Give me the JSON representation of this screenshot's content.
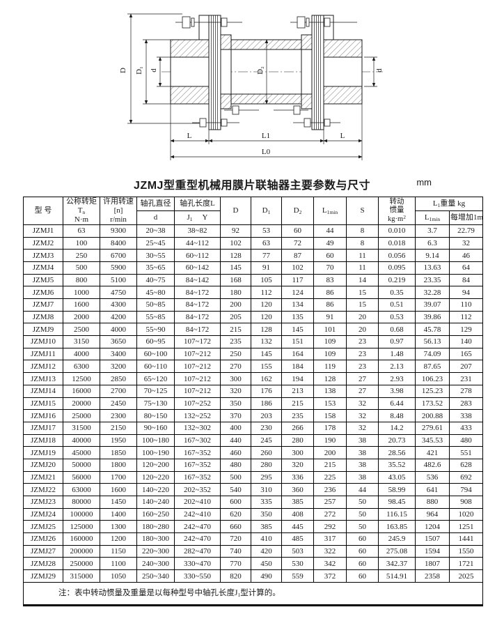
{
  "page": {
    "title": "JZMJ型重型机械用膜片联轴器主要参数与尺寸",
    "unit": "mm"
  },
  "drawing": {
    "labels": {
      "D": "D",
      "D1": "D₁",
      "d_left": "d",
      "D2": "D₂",
      "d_right": "d",
      "L_left": "L",
      "L1": "L1",
      "L_right": "L",
      "L0": "L0"
    }
  },
  "table": {
    "headers": {
      "model": "型 号",
      "torque": {
        "l1": "公称转矩",
        "l2_base": "T",
        "l2_sub": "n",
        "l3": "N·m"
      },
      "speed": {
        "l1": "许用转速",
        "l2": "[n]",
        "l3": "r/min"
      },
      "bore_dia": {
        "top": "轴孔直径",
        "sub": "d"
      },
      "bore_len": {
        "top": "轴孔长度L",
        "j_base": "J",
        "j_sub": "1",
        "y": "Y"
      },
      "D": "D",
      "D1": {
        "base": "D",
        "sub": "1"
      },
      "D2": {
        "base": "D",
        "sub": "2"
      },
      "L1min": {
        "base": "L",
        "sub": "1min"
      },
      "S": "S",
      "inertia": {
        "l1": "转动",
        "l2": "惯量",
        "l3_base": "kg·m",
        "l3_sup": "2"
      },
      "weight": {
        "base": "L",
        "sub": "1",
        "rest": "重量 kg",
        "c1_base": "L",
        "c1_sub": "1min",
        "c2": "每增加1m"
      }
    },
    "rows": [
      [
        "JZMJ1",
        "63",
        "9300",
        "20~38",
        "38~82",
        "92",
        "53",
        "60",
        "44",
        "8",
        "0.010",
        "3.7",
        "22.79"
      ],
      [
        "JZMJ2",
        "100",
        "8400",
        "25~45",
        "44~112",
        "102",
        "63",
        "72",
        "49",
        "8",
        "0.018",
        "6.3",
        "32"
      ],
      [
        "JZMJ3",
        "250",
        "6700",
        "30~55",
        "60~112",
        "128",
        "77",
        "87",
        "60",
        "11",
        "0.056",
        "9.14",
        "46"
      ],
      [
        "JZMJ4",
        "500",
        "5900",
        "35~65",
        "60~142",
        "145",
        "91",
        "102",
        "70",
        "11",
        "0.095",
        "13.63",
        "64"
      ],
      [
        "JZMJ5",
        "800",
        "5100",
        "40~75",
        "84~142",
        "168",
        "105",
        "117",
        "83",
        "14",
        "0.219",
        "23.35",
        "84"
      ],
      [
        "JZMJ6",
        "1000",
        "4750",
        "45~80",
        "84~172",
        "180",
        "112",
        "124",
        "86",
        "15",
        "0.35",
        "32.28",
        "94"
      ],
      [
        "JZMJ7",
        "1600",
        "4300",
        "50~85",
        "84~172",
        "200",
        "120",
        "134",
        "86",
        "15",
        "0.51",
        "39.07",
        "110"
      ],
      [
        "JZMJ8",
        "2000",
        "4200",
        "55~85",
        "84~172",
        "205",
        "120",
        "135",
        "91",
        "20",
        "0.53",
        "39.86",
        "112"
      ],
      [
        "JZMJ9",
        "2500",
        "4000",
        "55~90",
        "84~172",
        "215",
        "128",
        "145",
        "101",
        "20",
        "0.68",
        "45.78",
        "129"
      ],
      [
        "JZMJ10",
        "3150",
        "3650",
        "60~95",
        "107~172",
        "235",
        "132",
        "151",
        "109",
        "23",
        "0.97",
        "56.13",
        "140"
      ],
      [
        "JZMJ11",
        "4000",
        "3400",
        "60~100",
        "107~212",
        "250",
        "145",
        "164",
        "109",
        "23",
        "1.48",
        "74.09",
        "165"
      ],
      [
        "JZMJ12",
        "6300",
        "3200",
        "60~110",
        "107~212",
        "270",
        "155",
        "184",
        "119",
        "23",
        "2.13",
        "87.65",
        "207"
      ],
      [
        "JZMJ13",
        "12500",
        "2850",
        "65~120",
        "107~212",
        "300",
        "162",
        "194",
        "128",
        "27",
        "2.93",
        "106.23",
        "231"
      ],
      [
        "JZMJ14",
        "16000",
        "2700",
        "70~125",
        "107~212",
        "320",
        "176",
        "213",
        "138",
        "27",
        "3.98",
        "125.23",
        "278"
      ],
      [
        "JZMJ15",
        "20000",
        "2450",
        "75~130",
        "107~252",
        "350",
        "186",
        "215",
        "153",
        "32",
        "6.44",
        "173.52",
        "283"
      ],
      [
        "JZMJ16",
        "25000",
        "2300",
        "80~150",
        "132~252",
        "370",
        "203",
        "235",
        "158",
        "32",
        "8.48",
        "200.88",
        "338"
      ],
      [
        "JZMJ17",
        "31500",
        "2150",
        "90~160",
        "132~302",
        "400",
        "230",
        "266",
        "178",
        "32",
        "14.2",
        "279.61",
        "433"
      ],
      [
        "JZMJ18",
        "40000",
        "1950",
        "100~180",
        "167~302",
        "440",
        "245",
        "280",
        "190",
        "38",
        "20.73",
        "345.53",
        "480"
      ],
      [
        "JZMJ19",
        "45000",
        "1850",
        "100~190",
        "167~352",
        "460",
        "260",
        "300",
        "200",
        "38",
        "28.56",
        "421",
        "551"
      ],
      [
        "JZMJ20",
        "50000",
        "1800",
        "120~200",
        "167~352",
        "480",
        "280",
        "320",
        "215",
        "38",
        "35.52",
        "482.6",
        "628"
      ],
      [
        "JZMJ21",
        "56000",
        "1700",
        "120~220",
        "167~352",
        "500",
        "295",
        "336",
        "225",
        "38",
        "43.05",
        "536",
        "692"
      ],
      [
        "JZMJ22",
        "63000",
        "1600",
        "140~220",
        "202~352",
        "540",
        "310",
        "360",
        "236",
        "44",
        "58.99",
        "641",
        "794"
      ],
      [
        "JZMJ23",
        "80000",
        "1450",
        "140~240",
        "202~410",
        "600",
        "335",
        "385",
        "257",
        "50",
        "98.45",
        "880",
        "908"
      ],
      [
        "JZMJ24",
        "100000",
        "1400",
        "160~250",
        "242~410",
        "620",
        "350",
        "408",
        "272",
        "50",
        "116.15",
        "964",
        "1020"
      ],
      [
        "JZMJ25",
        "125000",
        "1300",
        "180~280",
        "242~470",
        "660",
        "385",
        "445",
        "292",
        "50",
        "163.85",
        "1204",
        "1251"
      ],
      [
        "JZMJ26",
        "160000",
        "1200",
        "180~300",
        "242~470",
        "720",
        "410",
        "485",
        "317",
        "60",
        "245.9",
        "1507",
        "1441"
      ],
      [
        "JZMJ27",
        "200000",
        "1150",
        "220~300",
        "282~470",
        "740",
        "420",
        "503",
        "322",
        "60",
        "275.08",
        "1594",
        "1550"
      ],
      [
        "JZMJ28",
        "250000",
        "1100",
        "240~300",
        "330~470",
        "770",
        "450",
        "530",
        "342",
        "60",
        "342.37",
        "1807",
        "1721"
      ],
      [
        "JZMJ29",
        "315000",
        "1050",
        "250~340",
        "330~550",
        "820",
        "490",
        "559",
        "372",
        "60",
        "514.91",
        "2358",
        "2025"
      ]
    ],
    "note": {
      "p1": "注：表中转动惯量及重量是以每种型号中轴孔长度J",
      "sub": "1",
      "p2": "型计算的。"
    }
  }
}
